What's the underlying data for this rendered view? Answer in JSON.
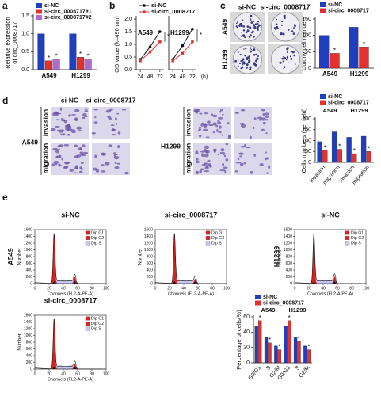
{
  "panel_letters": [
    "a",
    "b",
    "c",
    "d",
    "e"
  ],
  "colony_images": {
    "columns": [
      "si-NC",
      "si-circ_0008717"
    ],
    "rows": [
      "A549",
      "H1299"
    ]
  },
  "transwell_images": {
    "columns": [
      "si-NC",
      "si-circ_0008717"
    ],
    "cell_lines": [
      "A549",
      "H1299"
    ],
    "rows": [
      "invasion",
      "migration"
    ]
  },
  "flow_rows": [
    "A549",
    "H1299"
  ],
  "chart_data": [
    {
      "type": "bar",
      "ylabel": [
        "Relative expression",
        "of circ_0008717"
      ],
      "categories": [
        "A549",
        "H1299"
      ],
      "series": [
        {
          "name": "si-NC",
          "color": "#1f3fbf",
          "values": [
            1.0,
            1.0
          ]
        },
        {
          "name": "si-circ_0008717#1",
          "color": "#e53030",
          "values": [
            0.25,
            0.35
          ]
        },
        {
          "name": "si-circ_0008717#2",
          "color": "#b06ad0",
          "values": [
            0.3,
            0.3
          ]
        }
      ],
      "ylim": [
        0,
        1.5
      ],
      "yticks": [
        {
          "value": 0,
          "label": "0.0"
        },
        {
          "value": 0.5,
          "label": "0.5"
        },
        {
          "value": 1,
          "label": "1.0"
        },
        {
          "value": 1.5,
          "label": "1.5"
        }
      ],
      "significance": "*"
    },
    {
      "type": "line",
      "ylabel": "OD value (λ=490 nm)",
      "groups": [
        "A549",
        "H1299"
      ],
      "x": [
        24,
        48,
        72,
        24,
        48,
        72
      ],
      "xunit": "(h)",
      "series": [
        {
          "name": "si-NC",
          "color": "#111111",
          "values": [
            0.4,
            0.9,
            1.5,
            0.4,
            0.95,
            1.6
          ]
        },
        {
          "name": "si-circ_0008717",
          "color": "#e53030",
          "values": [
            0.35,
            0.7,
            1.1,
            0.35,
            0.65,
            1.1
          ]
        }
      ],
      "xlim": [
        14,
        82
      ],
      "xticks": [
        24,
        48,
        72
      ],
      "ylim": [
        0,
        2
      ],
      "yticks": [
        {
          "value": 0,
          "label": "0.0"
        },
        {
          "value": 0.5,
          "label": "0.5"
        },
        {
          "value": 1,
          "label": "1.0"
        },
        {
          "value": 1.5,
          "label": "1.5"
        },
        {
          "value": 2,
          "label": "2.0"
        }
      ],
      "significance": "*"
    },
    {
      "type": "bar",
      "ylabel": "Colony cell numbers",
      "categories": [
        "A549",
        "H1299"
      ],
      "series": [
        {
          "name": "si-NC",
          "color": "#1f3fbf",
          "values": [
            100,
            125
          ]
        },
        {
          "name": "si-circ_0008717",
          "color": "#e53030",
          "values": [
            45,
            65
          ]
        }
      ],
      "ylim": [
        0,
        150
      ],
      "yticks": [
        0,
        50,
        100,
        150
      ],
      "significance": "*"
    },
    {
      "type": "bar",
      "ylabel": "Cells numbers (per field)",
      "categories": [
        "invasion",
        "migration",
        "invasion",
        "migration"
      ],
      "groups": [
        "A549",
        "H1299"
      ],
      "series": [
        {
          "name": "si-NC",
          "color": "#1f3fbf",
          "values": [
            95,
            140,
            115,
            120
          ]
        },
        {
          "name": "si-circ_0008717",
          "color": "#e53030",
          "values": [
            55,
            60,
            40,
            50
          ]
        }
      ],
      "ylim": [
        0,
        200
      ],
      "yticks": [
        0,
        50,
        100,
        150,
        200
      ],
      "significance": "*"
    },
    {
      "type": "flow",
      "title": "si-NC",
      "ylabel": "Number",
      "xlabel": "Channels (FL2-A-PE-A)",
      "xlim": [
        0,
        100
      ],
      "ylim": [
        0,
        1600
      ],
      "xticks": [
        0,
        20,
        40,
        60,
        80,
        100
      ],
      "yticks": [
        0,
        200,
        400,
        600,
        800,
        1000,
        1200,
        1400,
        1600
      ],
      "legend": [
        {
          "name": "Dip G1",
          "color": "#e02020"
        },
        {
          "name": "Dip G2",
          "color": "#e02020"
        },
        {
          "name": "Dip S",
          "color": "#c8c8f0"
        }
      ]
    },
    {
      "type": "flow",
      "title": "si-circ_0008717",
      "ylabel": "Number",
      "xlabel": "Channels (FL2-A-PE-A)",
      "xlim": [
        0,
        100
      ],
      "ylim": [
        0,
        1600
      ],
      "xticks": [
        0,
        20,
        40,
        60,
        80,
        100
      ],
      "yticks": [
        0,
        200,
        400,
        600,
        800,
        1000,
        1200,
        1400,
        1600
      ],
      "legend": [
        {
          "name": "Dip G1",
          "color": "#e02020"
        },
        {
          "name": "Dip G2",
          "color": "#e02020"
        },
        {
          "name": "Dip S",
          "color": "#c8c8f0"
        }
      ]
    },
    {
      "type": "flow",
      "title": "si-NC",
      "ylabel": "Number",
      "xlabel": "Channels (FL2-A-PE-A)",
      "xlim": [
        0,
        100
      ],
      "ylim": [
        0,
        1600
      ],
      "xticks": [
        0,
        20,
        40,
        60,
        80,
        100
      ],
      "yticks": [
        0,
        200,
        400,
        600,
        800,
        1000,
        1200,
        1400,
        1600
      ],
      "legend": [
        {
          "name": "Dip G1",
          "color": "#e02020"
        },
        {
          "name": "Dip G2",
          "color": "#e02020"
        },
        {
          "name": "Dip S",
          "color": "#c8c8f0"
        }
      ]
    },
    {
      "type": "flow",
      "title": "si-circ_0008717",
      "ylabel": "Number",
      "xlabel": "Channels (FL2-A-PE-A)",
      "xlim": [
        0,
        100
      ],
      "ylim": [
        0,
        1600
      ],
      "xticks": [
        0,
        20,
        40,
        60,
        80,
        100
      ],
      "yticks": [
        0,
        200,
        400,
        600,
        800,
        1000,
        1200,
        1400,
        1600
      ],
      "legend": [
        {
          "name": "Dip G1",
          "color": "#e02020"
        },
        {
          "name": "Dip G2",
          "color": "#e02020"
        },
        {
          "name": "Dip S",
          "color": "#c8c8f0"
        }
      ]
    },
    {
      "type": "bar",
      "ylabel": "Percentage of cells(%)",
      "categories": [
        "G0/G1",
        "S",
        "G2/M",
        "G0/G1",
        "S",
        "G2/M"
      ],
      "groups": [
        "A549",
        "H1299"
      ],
      "series": [
        {
          "name": "si-NC",
          "color": "#1f3fbf",
          "values": [
            48,
            33,
            22,
            48,
            33,
            22
          ]
        },
        {
          "name": "si-circ_0008717",
          "color": "#e53030",
          "values": [
            55,
            26,
            17,
            55,
            28,
            17
          ]
        }
      ],
      "ylim": [
        0,
        60
      ],
      "yticks": [
        0,
        20,
        40,
        60
      ],
      "significance": "*"
    }
  ]
}
